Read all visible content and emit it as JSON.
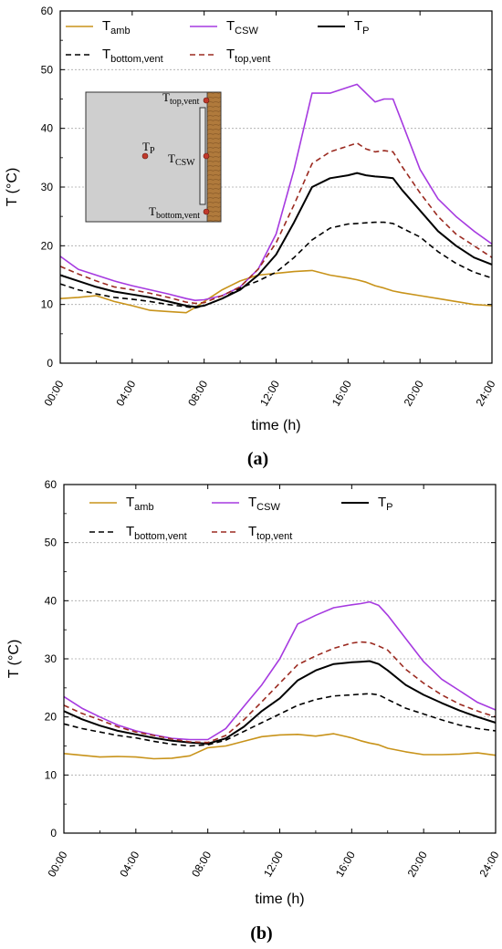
{
  "colors": {
    "amb": "#c8931a",
    "csw": "#a63ae0",
    "p": "#000000",
    "bottom_vent": "#000000",
    "top_vent": "#9b2a20",
    "grid": "#a8a8a8",
    "inset_fill": "#cfcfcf",
    "inset_wood": "#b07a3c",
    "sensor_dot": "#c0392b"
  },
  "legend": [
    {
      "key": "amb",
      "main": "T",
      "sub": "amb",
      "style": "solid"
    },
    {
      "key": "csw",
      "main": "T",
      "sub": "CSW",
      "style": "solid"
    },
    {
      "key": "p",
      "main": "T",
      "sub": "P",
      "style": "solid"
    },
    {
      "key": "bottom_vent",
      "main": "T",
      "sub": "bottom,vent",
      "style": "dashed"
    },
    {
      "key": "top_vent",
      "main": "T",
      "sub": "top,vent",
      "style": "dashed"
    }
  ],
  "inset": {
    "labels": [
      {
        "main": "T",
        "sub": "top,vent"
      },
      {
        "main": "T",
        "sub": "P"
      },
      {
        "main": "T",
        "sub": "CSW"
      },
      {
        "main": "T",
        "sub": "bottom,vent"
      }
    ]
  },
  "chart_data": [
    {
      "type": "line",
      "panel_label": "(a)",
      "xlabel": "time (h)",
      "ylabel": "T (°C)",
      "xlim": [
        0,
        24
      ],
      "ylim": [
        0,
        60
      ],
      "x_ticks": [
        "00:00",
        "04:00",
        "08:00",
        "12:00",
        "16:00",
        "20:00",
        "24:00"
      ],
      "y_ticks": [
        0,
        10,
        20,
        30,
        40,
        50,
        60
      ],
      "grid": "horizontal dotted",
      "legend_position": "top",
      "x": [
        0,
        1,
        2,
        3,
        4,
        5,
        6,
        7,
        7.5,
        8,
        9,
        10,
        11,
        12,
        13,
        14,
        15,
        16,
        16.5,
        17,
        17.5,
        18,
        18.5,
        19,
        20,
        21,
        22,
        23,
        24
      ],
      "series": [
        {
          "name": "T_amb",
          "key": "amb",
          "values": [
            11,
            11.2,
            11.5,
            10.5,
            9.8,
            9,
            8.8,
            8.6,
            9.5,
            10.5,
            12.5,
            14,
            15,
            15.3,
            15.6,
            15.8,
            15,
            14.5,
            14.2,
            13.8,
            13.2,
            12.8,
            12.3,
            12,
            11.5,
            11,
            10.5,
            10,
            9.8
          ]
        },
        {
          "name": "T_CSW",
          "key": "csw",
          "values": [
            18.2,
            16,
            15,
            14,
            13.2,
            12.5,
            11.8,
            11,
            10.7,
            10.8,
            11.5,
            13,
            16,
            22,
            33,
            46,
            46,
            47,
            47.5,
            46,
            44.5,
            45,
            45,
            41,
            33,
            28,
            25,
            22.5,
            20.3
          ]
        },
        {
          "name": "T_P",
          "key": "p",
          "values": [
            15,
            14,
            13,
            12.2,
            11.7,
            11.2,
            10.5,
            9.8,
            9.6,
            9.8,
            11,
            12.5,
            15,
            18.5,
            24,
            30,
            31.5,
            32,
            32.4,
            32,
            31.8,
            31.7,
            31.5,
            29.5,
            26,
            22.5,
            20,
            18,
            16.8
          ]
        },
        {
          "name": "T_bottom,vent",
          "key": "bottom_vent",
          "values": [
            13.5,
            12.5,
            11.8,
            11.2,
            10.9,
            10.5,
            10,
            9.6,
            9.4,
            9.8,
            11,
            12.8,
            14,
            15.5,
            18,
            21,
            23,
            23.7,
            23.8,
            23.9,
            24,
            24,
            23.8,
            23,
            21.5,
            19,
            17,
            15.5,
            14.5
          ]
        },
        {
          "name": "T_top,vent",
          "key": "top_vent",
          "values": [
            16.5,
            15.2,
            14,
            13,
            12.5,
            11.9,
            11.2,
            10.4,
            10.2,
            10.3,
            11.5,
            13,
            16,
            20.5,
            27,
            34,
            36,
            37,
            37.5,
            36.5,
            36,
            36.2,
            36,
            33.5,
            29,
            25,
            22,
            20,
            18
          ]
        }
      ]
    },
    {
      "type": "line",
      "panel_label": "(b)",
      "xlabel": "time (h)",
      "ylabel": "T (°C)",
      "xlim": [
        0,
        24
      ],
      "ylim": [
        0,
        60
      ],
      "x_ticks": [
        "00:00",
        "04:00",
        "08:00",
        "12:00",
        "16:00",
        "20:00",
        "24:00"
      ],
      "y_ticks": [
        0,
        10,
        20,
        30,
        40,
        50,
        60
      ],
      "grid": "horizontal dotted",
      "legend_position": "top",
      "x": [
        0,
        1,
        2,
        3,
        4,
        5,
        6,
        7,
        8,
        9,
        10,
        11,
        12,
        13,
        14,
        15,
        16,
        16.5,
        17,
        17.5,
        18,
        19,
        20,
        21,
        22,
        23,
        24
      ],
      "series": [
        {
          "name": "T_amb",
          "key": "amb",
          "values": [
            13.7,
            13.4,
            13.1,
            13.2,
            13.1,
            12.8,
            12.9,
            13.3,
            14.7,
            15,
            15.8,
            16.6,
            16.9,
            17,
            16.7,
            17.1,
            16.4,
            15.9,
            15.5,
            15.2,
            14.6,
            14,
            13.5,
            13.5,
            13.6,
            13.8,
            13.4
          ]
        },
        {
          "name": "T_CSW",
          "key": "csw",
          "values": [
            23.5,
            21.5,
            20,
            18.6,
            17.6,
            16.9,
            16.3,
            16.1,
            16.1,
            18,
            21.8,
            25.5,
            30,
            36,
            37.5,
            38.8,
            39.3,
            39.5,
            39.8,
            39.2,
            37.5,
            33.5,
            29.5,
            26.5,
            24.5,
            22.5,
            21.2
          ]
        },
        {
          "name": "T_P",
          "key": "p",
          "values": [
            21,
            19.6,
            18.5,
            17.6,
            17,
            16.4,
            15.9,
            15.6,
            15.4,
            16.3,
            18.3,
            21,
            23.2,
            26.3,
            28,
            29.1,
            29.4,
            29.5,
            29.6,
            29.1,
            28,
            25.5,
            23.8,
            22.4,
            21.1,
            20,
            19
          ]
        },
        {
          "name": "T_bottom,vent",
          "key": "bottom_vent",
          "values": [
            18.8,
            18,
            17.4,
            16.8,
            16.4,
            15.8,
            15.3,
            15,
            15.2,
            16,
            17.5,
            19,
            20.5,
            22,
            23,
            23.6,
            23.8,
            23.9,
            24,
            23.8,
            23,
            21.5,
            20.5,
            19.5,
            18.6,
            18,
            17.6
          ]
        },
        {
          "name": "T_top,vent",
          "key": "top_vent",
          "values": [
            22,
            20.6,
            19.5,
            18.3,
            17.4,
            16.8,
            16.2,
            15.7,
            15.6,
            16.8,
            19.5,
            22.6,
            25.8,
            29,
            30.5,
            31.8,
            32.7,
            32.9,
            32.8,
            32.2,
            31.5,
            28.2,
            25.8,
            23.8,
            22.2,
            21,
            20
          ]
        }
      ]
    }
  ]
}
